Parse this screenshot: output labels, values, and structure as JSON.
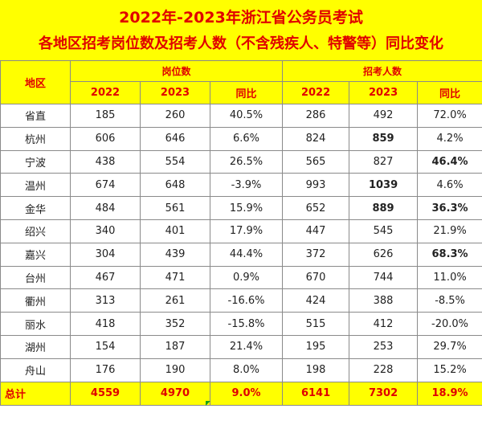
{
  "title": {
    "line1": "2022年-2023年浙江省公务员考试",
    "line2": "各地区招考岗位数及招考人数（不含残疾人、特警等）同比变化"
  },
  "table": {
    "region_header": "地区",
    "groups": {
      "positions": "岗位数",
      "applicants": "招考人数"
    },
    "subheaders": [
      "2022",
      "2023",
      "同比",
      "2022",
      "2023",
      "同比"
    ],
    "rows": [
      {
        "region": "省直",
        "p2022": "185",
        "p2023": "260",
        "pyoy": "40.5%",
        "a2022": "286",
        "a2023": "492",
        "ayoy": "72.0%"
      },
      {
        "region": "杭州",
        "p2022": "606",
        "p2023": "646",
        "pyoy": "6.6%",
        "a2022": "824",
        "a2023": "859",
        "ayoy": "4.2%"
      },
      {
        "region": "宁波",
        "p2022": "438",
        "p2023": "554",
        "pyoy": "26.5%",
        "a2022": "565",
        "a2023": "827",
        "ayoy": "46.4%"
      },
      {
        "region": "温州",
        "p2022": "674",
        "p2023": "648",
        "pyoy": "-3.9%",
        "a2022": "993",
        "a2023": "1039",
        "ayoy": "4.6%"
      },
      {
        "region": "金华",
        "p2022": "484",
        "p2023": "561",
        "pyoy": "15.9%",
        "a2022": "652",
        "a2023": "889",
        "ayoy": "36.3%"
      },
      {
        "region": "绍兴",
        "p2022": "340",
        "p2023": "401",
        "pyoy": "17.9%",
        "a2022": "447",
        "a2023": "545",
        "ayoy": "21.9%"
      },
      {
        "region": "嘉兴",
        "p2022": "304",
        "p2023": "439",
        "pyoy": "44.4%",
        "a2022": "372",
        "a2023": "626",
        "ayoy": "68.3%"
      },
      {
        "region": "台州",
        "p2022": "467",
        "p2023": "471",
        "pyoy": "0.9%",
        "a2022": "670",
        "a2023": "744",
        "ayoy": "11.0%"
      },
      {
        "region": "衢州",
        "p2022": "313",
        "p2023": "261",
        "pyoy": "-16.6%",
        "a2022": "424",
        "a2023": "388",
        "ayoy": "-8.5%"
      },
      {
        "region": "丽水",
        "p2022": "418",
        "p2023": "352",
        "pyoy": "-15.8%",
        "a2022": "515",
        "a2023": "412",
        "ayoy": "-20.0%"
      },
      {
        "region": "湖州",
        "p2022": "154",
        "p2023": "187",
        "pyoy": "21.4%",
        "a2022": "195",
        "a2023": "253",
        "ayoy": "29.7%"
      },
      {
        "region": "舟山",
        "p2022": "176",
        "p2023": "190",
        "pyoy": "8.0%",
        "a2022": "198",
        "a2023": "228",
        "ayoy": "15.2%"
      }
    ],
    "total": {
      "region": "总计",
      "p2022": "4559",
      "p2023": "4970",
      "pyoy": "9.0%",
      "a2022": "6141",
      "a2023": "7302",
      "ayoy": "18.9%"
    }
  },
  "colors": {
    "highlight_band": "#ffff00",
    "accent_text": "#e00000",
    "grid_border": "#8a8a8a"
  }
}
